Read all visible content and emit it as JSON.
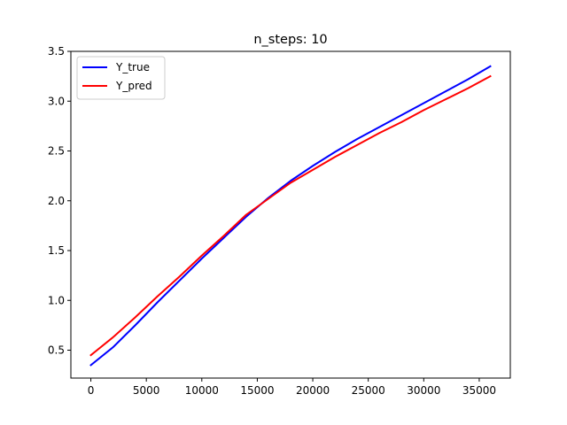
{
  "chart_data": {
    "type": "line",
    "title": "n_steps: 10",
    "xlabel": "",
    "ylabel": "",
    "xlim": [
      -1800,
      37800
    ],
    "ylim": [
      0.22,
      3.5
    ],
    "x_ticks": [
      0,
      5000,
      10000,
      15000,
      20000,
      25000,
      30000,
      35000
    ],
    "x_tick_labels": [
      "0",
      "5000",
      "10000",
      "15000",
      "20000",
      "25000",
      "30000",
      "35000"
    ],
    "y_ticks": [
      0.5,
      1.0,
      1.5,
      2.0,
      2.5,
      3.0,
      3.5
    ],
    "y_tick_labels": [
      "0.5",
      "1.0",
      "1.5",
      "2.0",
      "2.5",
      "3.0",
      "3.5"
    ],
    "grid": false,
    "legend_position": "top-left",
    "series": [
      {
        "name": "Y_true",
        "color": "#0000ff",
        "x": [
          0,
          2000,
          4000,
          6000,
          8000,
          10000,
          12000,
          14000,
          16000,
          18000,
          20000,
          22000,
          24000,
          26000,
          28000,
          30000,
          32000,
          34000,
          36000
        ],
        "y": [
          0.35,
          0.53,
          0.75,
          0.98,
          1.2,
          1.42,
          1.63,
          1.84,
          2.03,
          2.2,
          2.35,
          2.49,
          2.62,
          2.74,
          2.86,
          2.98,
          3.1,
          3.22,
          3.35
        ]
      },
      {
        "name": "Y_pred",
        "color": "#ff0000",
        "x": [
          0,
          2000,
          4000,
          6000,
          8000,
          10000,
          12000,
          14000,
          16000,
          18000,
          20000,
          22000,
          24000,
          26000,
          28000,
          30000,
          32000,
          34000,
          36000
        ],
        "y": [
          0.45,
          0.63,
          0.83,
          1.04,
          1.24,
          1.45,
          1.65,
          1.86,
          2.02,
          2.18,
          2.31,
          2.44,
          2.56,
          2.68,
          2.79,
          2.91,
          3.02,
          3.13,
          3.25
        ]
      }
    ]
  }
}
